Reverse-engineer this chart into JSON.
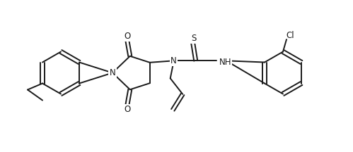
{
  "background_color": "#ffffff",
  "line_color": "#1a1a1a",
  "font_size": 8.5,
  "line_width": 1.4,
  "fig_width": 4.99,
  "fig_height": 2.16,
  "dpi": 100,
  "xlim": [
    0,
    9.98
  ],
  "ylim": [
    0,
    4.32
  ]
}
